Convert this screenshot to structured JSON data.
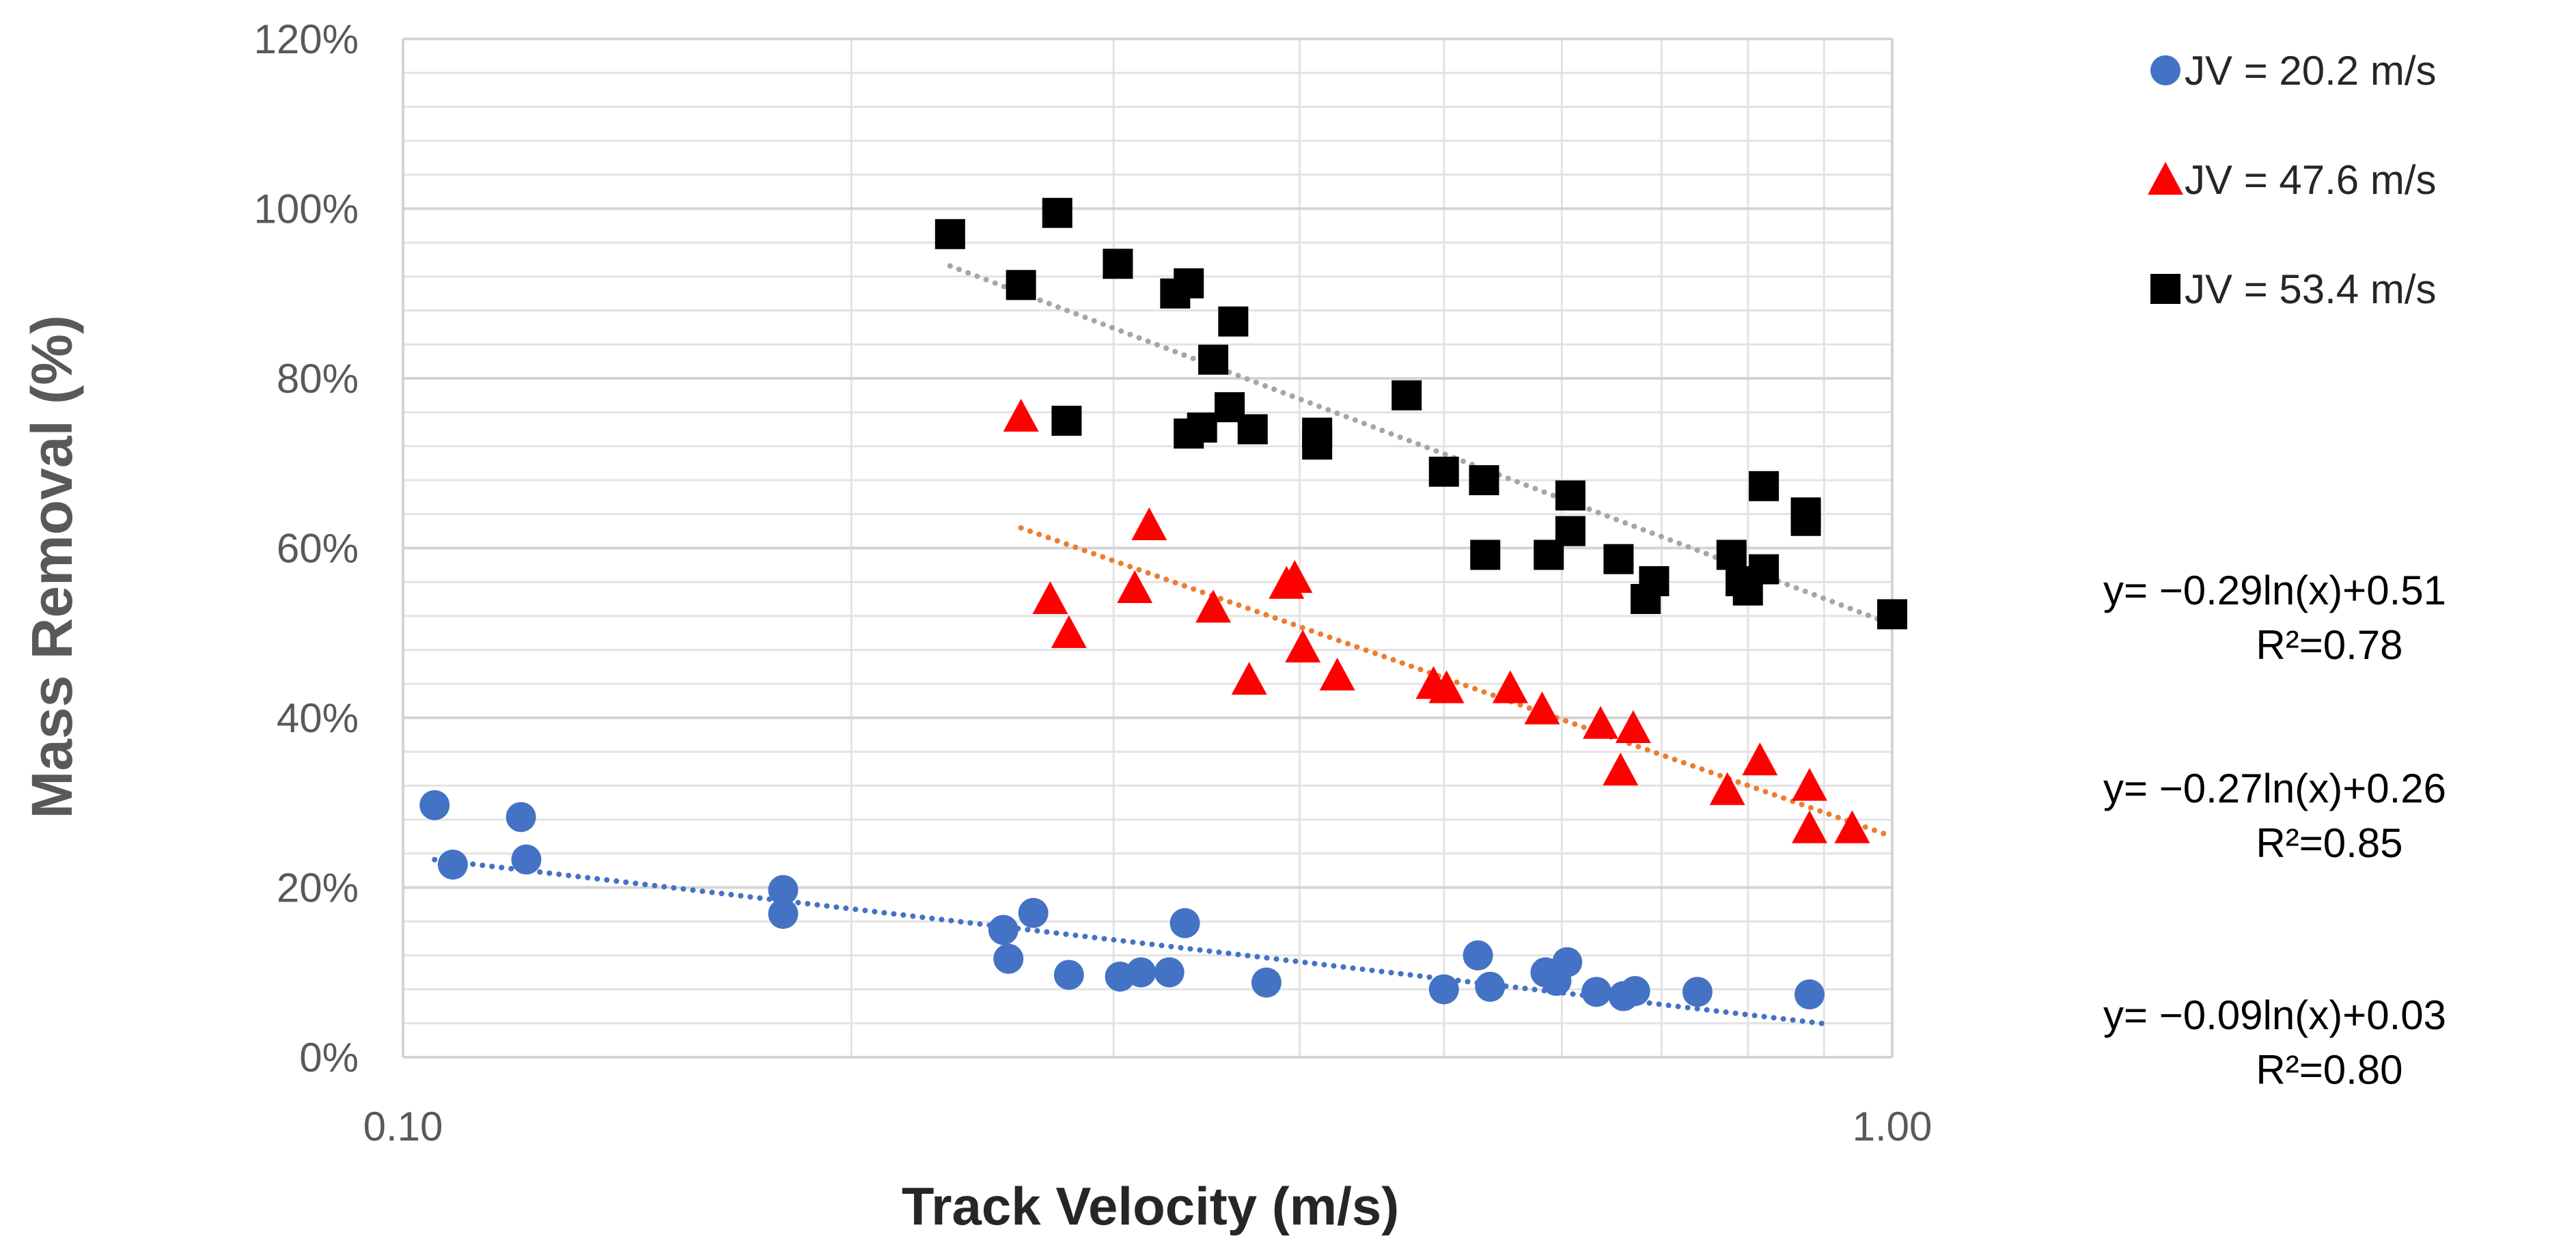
{
  "chart_data": {
    "type": "scatter",
    "title": "",
    "xlabel": "Track Velocity (m/s)",
    "ylabel": "Mass Removal (%)",
    "xscale": "log",
    "xlim": [
      0.1,
      1.0
    ],
    "ylim": [
      0,
      1.2
    ],
    "xticks": [
      {
        "value": 0.1,
        "label": "0.10"
      },
      {
        "value": 1.0,
        "label": "1.00"
      }
    ],
    "yticks": [
      {
        "value": 0.0,
        "label": "0%"
      },
      {
        "value": 0.2,
        "label": "20%"
      },
      {
        "value": 0.4,
        "label": "40%"
      },
      {
        "value": 0.6,
        "label": "60%"
      },
      {
        "value": 0.8,
        "label": "80%"
      },
      {
        "value": 1.0,
        "label": "100%"
      },
      {
        "value": 1.2,
        "label": "120%"
      }
    ],
    "grid": true,
    "legend_position": "right",
    "series": [
      {
        "name": "JV = 20.2 m/s",
        "marker": "circle",
        "color": "#4472C4",
        "trend_color": "#4472C4",
        "equation": "y= −0.09ln(x)+0.03",
        "r2": "R²=0.80",
        "trend": {
          "a": -0.09,
          "b": 0.03,
          "x_from": 0.105,
          "x_to": 0.9
        },
        "points": [
          [
            0.105,
            0.297
          ],
          [
            0.108,
            0.227
          ],
          [
            0.12,
            0.283
          ],
          [
            0.121,
            0.233
          ],
          [
            0.18,
            0.197
          ],
          [
            0.18,
            0.169
          ],
          [
            0.253,
            0.15
          ],
          [
            0.255,
            0.116
          ],
          [
            0.265,
            0.17
          ],
          [
            0.28,
            0.097
          ],
          [
            0.303,
            0.095
          ],
          [
            0.313,
            0.1
          ],
          [
            0.327,
            0.1
          ],
          [
            0.335,
            0.158
          ],
          [
            0.38,
            0.088
          ],
          [
            0.5,
            0.08
          ],
          [
            0.527,
            0.12
          ],
          [
            0.537,
            0.083
          ],
          [
            0.585,
            0.1
          ],
          [
            0.595,
            0.09
          ],
          [
            0.605,
            0.112
          ],
          [
            0.633,
            0.077
          ],
          [
            0.66,
            0.072
          ],
          [
            0.672,
            0.078
          ],
          [
            0.74,
            0.077
          ],
          [
            0.88,
            0.074
          ]
        ]
      },
      {
        "name": "JV = 47.6 m/s",
        "marker": "triangle",
        "color": "#FF0000",
        "trend_color": "#ED7D31",
        "equation": "y= −0.27ln(x)+0.26",
        "r2": "R²=0.85",
        "trend": {
          "a": -0.27,
          "b": 0.26,
          "x_from": 0.26,
          "x_to": 1.0
        },
        "points": [
          [
            0.26,
            0.755
          ],
          [
            0.272,
            0.54
          ],
          [
            0.28,
            0.5
          ],
          [
            0.31,
            0.553
          ],
          [
            0.317,
            0.627
          ],
          [
            0.35,
            0.53
          ],
          [
            0.37,
            0.445
          ],
          [
            0.392,
            0.558
          ],
          [
            0.397,
            0.565
          ],
          [
            0.402,
            0.483
          ],
          [
            0.424,
            0.45
          ],
          [
            0.492,
            0.44
          ],
          [
            0.502,
            0.435
          ],
          [
            0.554,
            0.435
          ],
          [
            0.582,
            0.41
          ],
          [
            0.637,
            0.393
          ],
          [
            0.657,
            0.338
          ],
          [
            0.67,
            0.388
          ],
          [
            0.775,
            0.315
          ],
          [
            0.815,
            0.35
          ],
          [
            0.88,
            0.32
          ],
          [
            0.88,
            0.27
          ],
          [
            0.94,
            0.27
          ]
        ]
      },
      {
        "name": "JV = 53.4 m/s",
        "marker": "square",
        "color": "#000000",
        "trend_color": "#A6A6A6",
        "equation": "y= −0.29ln(x)+0.51",
        "r2": "R²=0.78",
        "trend": {
          "a": -0.29,
          "b": 0.51,
          "x_from": 0.233,
          "x_to": 1.0
        },
        "points": [
          [
            0.233,
            0.97
          ],
          [
            0.26,
            0.91
          ],
          [
            0.275,
            0.995
          ],
          [
            0.279,
            0.75
          ],
          [
            0.302,
            0.935
          ],
          [
            0.33,
            0.9
          ],
          [
            0.337,
            0.912
          ],
          [
            0.337,
            0.735
          ],
          [
            0.344,
            0.742
          ],
          [
            0.35,
            0.822
          ],
          [
            0.359,
            0.766
          ],
          [
            0.361,
            0.867
          ],
          [
            0.372,
            0.74
          ],
          [
            0.411,
            0.736
          ],
          [
            0.411,
            0.722
          ],
          [
            0.472,
            0.78
          ],
          [
            0.5,
            0.69
          ],
          [
            0.532,
            0.68
          ],
          [
            0.533,
            0.592
          ],
          [
            0.588,
            0.592
          ],
          [
            0.608,
            0.662
          ],
          [
            0.608,
            0.62
          ],
          [
            0.655,
            0.587
          ],
          [
            0.683,
            0.54
          ],
          [
            0.692,
            0.561
          ],
          [
            0.78,
            0.592
          ],
          [
            0.791,
            0.561
          ],
          [
            0.8,
            0.55
          ],
          [
            0.82,
            0.673
          ],
          [
            0.82,
            0.575
          ],
          [
            0.875,
            0.642
          ],
          [
            0.875,
            0.632
          ],
          [
            1.0,
            0.522
          ]
        ]
      }
    ]
  }
}
